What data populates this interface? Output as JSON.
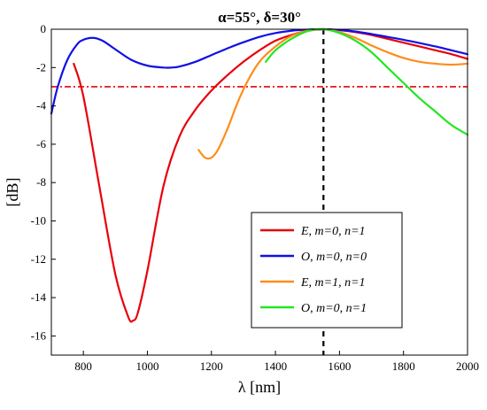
{
  "chart_data": {
    "type": "line",
    "title": "α=55°, δ=30°",
    "xlabel": "λ [nm]",
    "ylabel": "[dB]",
    "xlim": [
      700,
      2000
    ],
    "ylim": [
      -17,
      0
    ],
    "xticks": [
      800,
      1000,
      1200,
      1400,
      1600,
      1800,
      2000
    ],
    "yticks": [
      0,
      -2,
      -4,
      -6,
      -8,
      -10,
      -12,
      -14,
      -16
    ],
    "legend_position": "lower-right",
    "grid": false,
    "reference_lines": [
      {
        "orientation": "horizontal",
        "value": -3,
        "style": "dash-dot",
        "color": "#e8000b"
      },
      {
        "orientation": "vertical",
        "value": 1550,
        "style": "dashed",
        "color": "#000000"
      }
    ],
    "series": [
      {
        "name": "E, m=0, n=1",
        "color": "#e8000b",
        "x": [
          770,
          800,
          850,
          900,
          940,
          955,
          970,
          1000,
          1050,
          1100,
          1150,
          1200,
          1250,
          1300,
          1350,
          1400,
          1450,
          1500,
          1550,
          1600,
          1650,
          1700,
          1750,
          1800,
          1850,
          1900,
          1950,
          2000
        ],
        "y": [
          -1.8,
          -3.5,
          -8.2,
          -12.8,
          -15.0,
          -15.2,
          -14.8,
          -12.6,
          -8.2,
          -5.6,
          -4.2,
          -3.2,
          -2.4,
          -1.7,
          -1.1,
          -0.6,
          -0.3,
          -0.08,
          0.0,
          -0.05,
          -0.15,
          -0.3,
          -0.5,
          -0.7,
          -0.9,
          -1.1,
          -1.3,
          -1.55
        ]
      },
      {
        "name": "O, m=0, n=0",
        "color": "#1010e6",
        "x": [
          700,
          720,
          750,
          780,
          800,
          830,
          860,
          900,
          950,
          1000,
          1050,
          1075,
          1100,
          1150,
          1200,
          1250,
          1300,
          1350,
          1400,
          1450,
          1500,
          1550,
          1600,
          1650,
          1700,
          1750,
          1800,
          1850,
          1900,
          1950,
          2000
        ],
        "y": [
          -4.4,
          -3.0,
          -1.6,
          -0.8,
          -0.55,
          -0.45,
          -0.6,
          -1.05,
          -1.6,
          -1.9,
          -2.0,
          -2.0,
          -1.95,
          -1.7,
          -1.35,
          -1.0,
          -0.68,
          -0.4,
          -0.2,
          -0.08,
          -0.02,
          0.0,
          -0.04,
          -0.12,
          -0.25,
          -0.4,
          -0.55,
          -0.72,
          -0.9,
          -1.1,
          -1.3
        ]
      },
      {
        "name": "E, m=1, n=1",
        "color": "#ff8c1a",
        "x": [
          1160,
          1180,
          1200,
          1220,
          1250,
          1280,
          1310,
          1350,
          1400,
          1450,
          1500,
          1550,
          1600,
          1650,
          1700,
          1750,
          1800,
          1850,
          1900,
          1950,
          2000
        ],
        "y": [
          -6.3,
          -6.7,
          -6.7,
          -6.3,
          -5.2,
          -3.9,
          -2.8,
          -1.7,
          -0.9,
          -0.35,
          -0.08,
          0.0,
          -0.15,
          -0.45,
          -0.85,
          -1.2,
          -1.5,
          -1.7,
          -1.8,
          -1.85,
          -1.8
        ]
      },
      {
        "name": "O, m=0, n=1",
        "color": "#22e622",
        "x": [
          1370,
          1400,
          1450,
          1500,
          1550,
          1600,
          1650,
          1700,
          1750,
          1800,
          1850,
          1900,
          1950,
          2000
        ],
        "y": [
          -1.7,
          -1.1,
          -0.5,
          -0.1,
          0.0,
          -0.2,
          -0.6,
          -1.2,
          -2.0,
          -2.8,
          -3.6,
          -4.3,
          -5.0,
          -5.5
        ]
      }
    ]
  }
}
